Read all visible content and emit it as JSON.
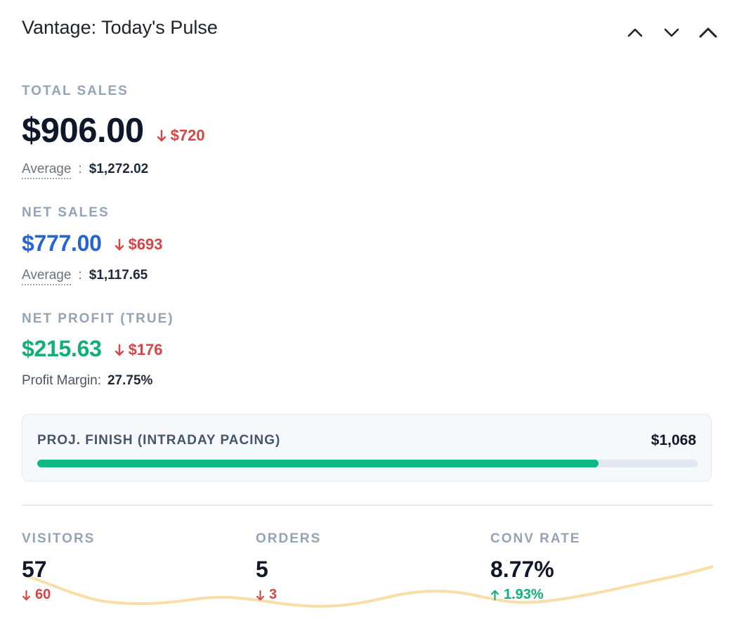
{
  "header": {
    "title": "Vantage: Today's Pulse",
    "controls": [
      {
        "name": "move-up",
        "icon": "chevron-up-icon"
      },
      {
        "name": "move-down",
        "icon": "chevron-down-icon"
      },
      {
        "name": "collapse",
        "icon": "chevron-up-icon"
      }
    ]
  },
  "total_sales": {
    "label": "TOTAL SALES",
    "value": "$906.00",
    "delta": "$720",
    "delta_direction": "down",
    "average_label": "Average",
    "separator": ":",
    "average_value": "$1,272.02"
  },
  "net_sales": {
    "label": "NET SALES",
    "value": "$777.00",
    "delta": "$693",
    "delta_direction": "down",
    "average_label": "Average",
    "separator": ":",
    "average_value": "$1,117.65"
  },
  "net_profit": {
    "label": "NET PROFIT (TRUE)",
    "value": "$215.63",
    "delta": "$176",
    "delta_direction": "down",
    "margin_label": "Profit Margin:",
    "margin_value": "27.75%"
  },
  "pacing": {
    "label": "PROJ. FINISH (INTRADAY PACING)",
    "value": "$1,068",
    "progress_percent": 85
  },
  "kpis": {
    "visitors": {
      "label": "VISITORS",
      "value": "57",
      "delta": "60",
      "delta_direction": "down"
    },
    "orders": {
      "label": "ORDERS",
      "value": "5",
      "delta": "3",
      "delta_direction": "down"
    },
    "conv_rate": {
      "label": "CONV RATE",
      "value": "8.77%",
      "delta": "1.93%",
      "delta_direction": "up"
    }
  },
  "colors": {
    "red": "#d64545",
    "green": "#10b075",
    "blue": "#2563d6",
    "progress": "#10b981",
    "sparkline": "#f9dfa6"
  }
}
